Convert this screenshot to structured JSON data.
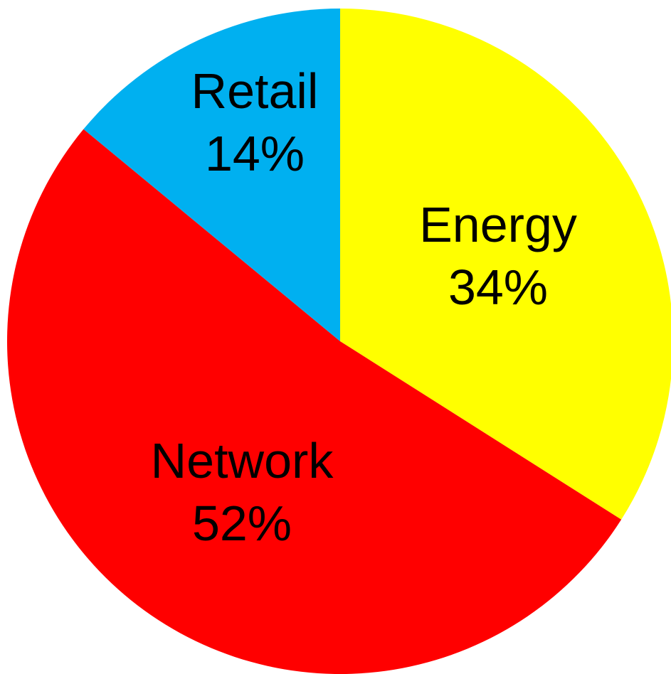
{
  "chart_data": {
    "type": "pie",
    "slices": [
      {
        "name": "Energy",
        "value": 34,
        "label": "34%",
        "color": "#FFFF00"
      },
      {
        "name": "Network",
        "value": 52,
        "label": "52%",
        "color": "#FF0000"
      },
      {
        "name": "Retail",
        "value": 14,
        "label": "14%",
        "color": "#00B0F0"
      }
    ],
    "start": "12 o'clock",
    "direction": "clockwise",
    "legend": "none (labels on slices)"
  }
}
